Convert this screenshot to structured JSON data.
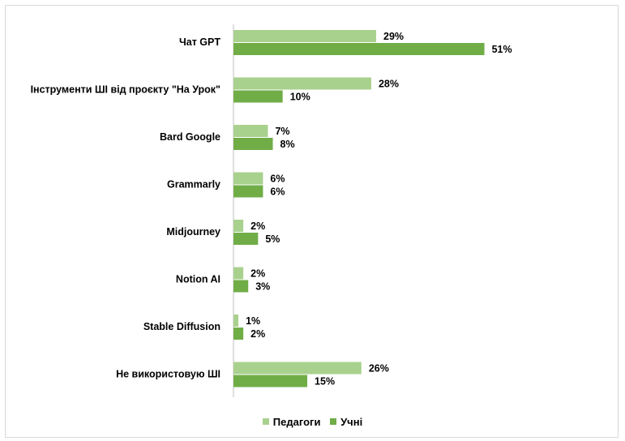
{
  "chart_data": {
    "type": "bar",
    "orientation": "horizontal",
    "categories": [
      "Чат GPT",
      "Інструменти ШІ від проєкту \"На Урок\"",
      "Bard Google",
      "Grammarly",
      "Midjourney",
      "Notion AI",
      "Stable Diffusion",
      "Не використовую ШІ"
    ],
    "series": [
      {
        "name": "Педагоги",
        "color": "#a9d18e",
        "values": [
          29,
          28,
          7,
          6,
          2,
          2,
          1,
          26
        ]
      },
      {
        "name": "Учні",
        "color": "#70ad47",
        "values": [
          51,
          10,
          8,
          6,
          5,
          3,
          2,
          15
        ]
      }
    ],
    "value_suffix": "%",
    "xlim": [
      0,
      60
    ],
    "grid": false,
    "show_x_axis": false,
    "legend_position": "bottom",
    "title": "",
    "xlabel": "",
    "ylabel": ""
  }
}
